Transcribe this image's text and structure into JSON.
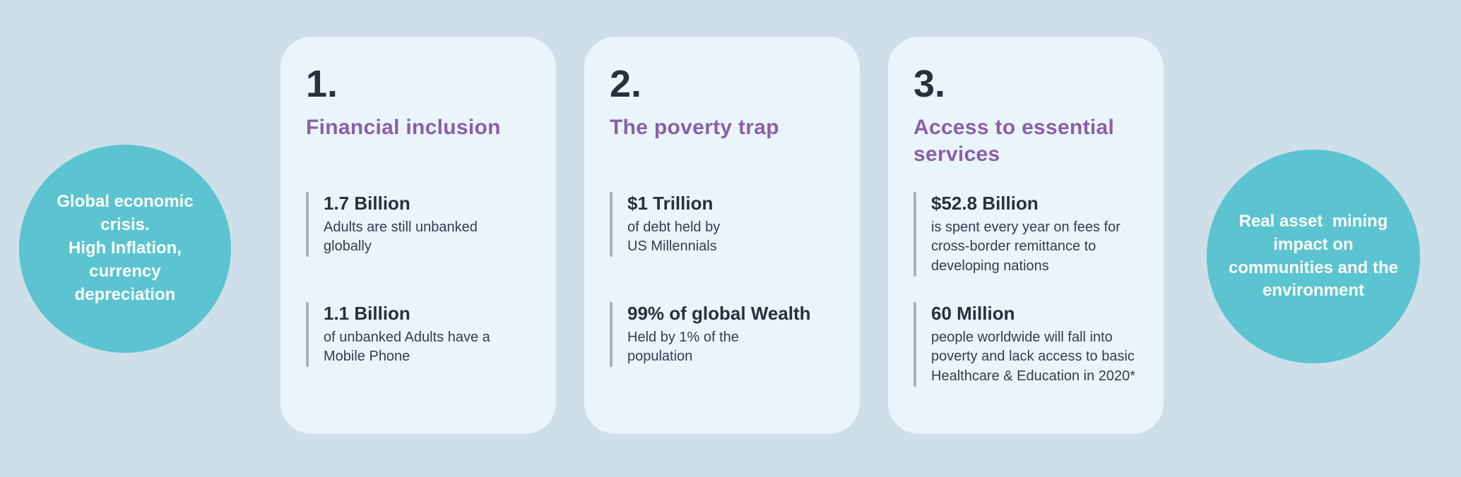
{
  "colors": {
    "page_background": "#cfdfea",
    "card_background": "#eaf4fb",
    "circle_teal": "#5bc4d0",
    "heading_purple": "#8a5fa8",
    "text_dark_navy": "#25323e",
    "stat_bar_gray": "#a5b1bb",
    "circle_text_white": "#ffffff"
  },
  "left_circle": {
    "text": "Global economic\ncrisis.\nHigh Inflation,\ncurrency\ndepreciation"
  },
  "right_circle": {
    "text": "Real asset  mining\nimpact on\ncommunities and the\nenvironment"
  },
  "cards": [
    {
      "number": "1.",
      "title": "Financial inclusion",
      "stats": [
        {
          "value": "1.7 Billion",
          "desc": "Adults are still unbanked\nglobally"
        },
        {
          "value": "1.1 Billion",
          "desc": "of unbanked Adults have a\nMobile Phone"
        }
      ]
    },
    {
      "number": "2.",
      "title": "The poverty trap",
      "stats": [
        {
          "value": "$1 Trillion",
          "desc": "of debt held by\nUS Millennials"
        },
        {
          "value": "99% of global Wealth",
          "desc": "Held by 1% of the\npopulation"
        }
      ]
    },
    {
      "number": "3.",
      "title": "Access to essential\nservices",
      "stats": [
        {
          "value": "$52.8 Billion",
          "desc": "is spent every year on fees for\ncross-border remittance to\ndeveloping nations"
        },
        {
          "value": "60 Million",
          "desc": "people worldwide will fall into\npoverty and lack access to basic\nHealthcare & Education in 2020*"
        }
      ]
    }
  ]
}
